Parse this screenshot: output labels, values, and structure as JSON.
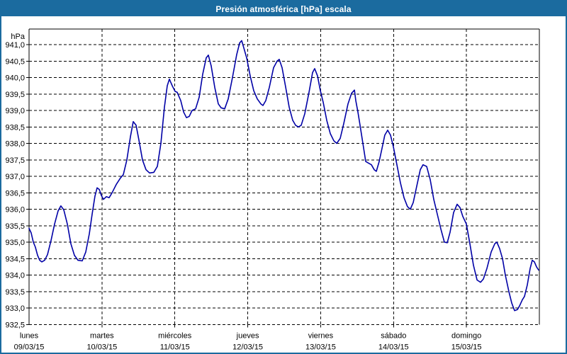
{
  "window": {
    "title": "Presión atmosférica [hPa] escala"
  },
  "colors": {
    "titlebar_bg": "#1b6b9f",
    "titlebar_text": "#ffffff",
    "window_border": "#1b6b9f",
    "plot_bg": "#ffffff",
    "grid": "#000000",
    "line": "#0000a6",
    "text": "#000000"
  },
  "y_axis": {
    "unit": "hPa",
    "ticks": [
      "941,0",
      "940,5",
      "940,0",
      "939,5",
      "939,0",
      "938,5",
      "938,0",
      "937,5",
      "937,0",
      "936,5",
      "936,0",
      "935,5",
      "935,0",
      "934,5",
      "934,0",
      "933,5",
      "933,0",
      "932,5"
    ],
    "max": 941.0,
    "min": 932.5,
    "step": 0.5
  },
  "x_axis": {
    "days": [
      {
        "name": "lunes",
        "date": "09/03/15"
      },
      {
        "name": "martes",
        "date": "10/03/15"
      },
      {
        "name": "miércoles",
        "date": "11/03/15"
      },
      {
        "name": "jueves",
        "date": "12/03/15"
      },
      {
        "name": "viernes",
        "date": "13/03/15"
      },
      {
        "name": "sábado",
        "date": "14/03/15"
      },
      {
        "name": "domingo",
        "date": "15/03/15"
      }
    ]
  },
  "chart_data": {
    "type": "line",
    "title": "Presión atmosférica [hPa] escala",
    "xlabel": "",
    "ylabel": "hPa",
    "ylim": [
      932.5,
      941.0
    ],
    "ytick_step": 0.5,
    "x_unit": "days since lunes 09/03/15 00:00, range 0–7",
    "x_categories": [
      "lunes 09/03/15",
      "martes 10/03/15",
      "miércoles 11/03/15",
      "jueves 12/03/15",
      "viernes 13/03/15",
      "sábado 14/03/15",
      "domingo 15/03/15"
    ],
    "grid": "dashed",
    "legend_position": "none",
    "line_color": "#0000a6",
    "series": [
      {
        "name": "Presión atmosférica [hPa]",
        "points": [
          [
            0.0,
            935.42
          ],
          [
            0.029,
            935.28
          ],
          [
            0.058,
            935.0
          ],
          [
            0.087,
            934.85
          ],
          [
            0.117,
            934.6
          ],
          [
            0.146,
            934.45
          ],
          [
            0.175,
            934.4
          ],
          [
            0.214,
            934.45
          ],
          [
            0.253,
            934.62
          ],
          [
            0.301,
            935.05
          ],
          [
            0.35,
            935.55
          ],
          [
            0.399,
            935.95
          ],
          [
            0.437,
            936.1
          ],
          [
            0.476,
            935.98
          ],
          [
            0.525,
            935.55
          ],
          [
            0.574,
            934.95
          ],
          [
            0.622,
            934.6
          ],
          [
            0.671,
            934.45
          ],
          [
            0.729,
            934.43
          ],
          [
            0.778,
            934.7
          ],
          [
            0.826,
            935.25
          ],
          [
            0.865,
            935.85
          ],
          [
            0.904,
            936.4
          ],
          [
            0.933,
            936.65
          ],
          [
            0.963,
            936.6
          ],
          [
            0.992,
            936.42
          ],
          [
            1.021,
            936.3
          ],
          [
            1.06,
            936.38
          ],
          [
            1.099,
            936.35
          ],
          [
            1.138,
            936.5
          ],
          [
            1.196,
            936.75
          ],
          [
            1.254,
            936.95
          ],
          [
            1.293,
            937.05
          ],
          [
            1.342,
            937.5
          ],
          [
            1.39,
            938.2
          ],
          [
            1.429,
            938.66
          ],
          [
            1.468,
            938.55
          ],
          [
            1.507,
            938.1
          ],
          [
            1.556,
            937.5
          ],
          [
            1.604,
            937.2
          ],
          [
            1.653,
            937.1
          ],
          [
            1.711,
            937.12
          ],
          [
            1.76,
            937.3
          ],
          [
            1.808,
            938.0
          ],
          [
            1.857,
            939.1
          ],
          [
            1.896,
            939.75
          ],
          [
            1.925,
            939.95
          ],
          [
            1.964,
            939.75
          ],
          [
            2.003,
            939.58
          ],
          [
            2.032,
            939.55
          ],
          [
            2.081,
            939.3
          ],
          [
            2.12,
            938.95
          ],
          [
            2.159,
            938.78
          ],
          [
            2.197,
            938.82
          ],
          [
            2.236,
            939.0
          ],
          [
            2.285,
            939.05
          ],
          [
            2.333,
            939.4
          ],
          [
            2.382,
            940.1
          ],
          [
            2.431,
            940.6
          ],
          [
            2.46,
            940.68
          ],
          [
            2.499,
            940.35
          ],
          [
            2.547,
            939.7
          ],
          [
            2.596,
            939.2
          ],
          [
            2.635,
            939.08
          ],
          [
            2.683,
            939.05
          ],
          [
            2.732,
            939.35
          ],
          [
            2.79,
            940.0
          ],
          [
            2.849,
            940.7
          ],
          [
            2.888,
            941.05
          ],
          [
            2.917,
            941.12
          ],
          [
            2.946,
            940.9
          ],
          [
            2.985,
            940.6
          ],
          [
            3.033,
            940.05
          ],
          [
            3.082,
            939.6
          ],
          [
            3.131,
            939.35
          ],
          [
            3.179,
            939.2
          ],
          [
            3.208,
            939.15
          ],
          [
            3.247,
            939.3
          ],
          [
            3.296,
            939.7
          ],
          [
            3.354,
            940.3
          ],
          [
            3.403,
            940.5
          ],
          [
            3.432,
            940.55
          ],
          [
            3.471,
            940.3
          ],
          [
            3.52,
            939.7
          ],
          [
            3.568,
            939.1
          ],
          [
            3.617,
            938.7
          ],
          [
            3.656,
            938.55
          ],
          [
            3.694,
            938.5
          ],
          [
            3.733,
            938.55
          ],
          [
            3.782,
            938.9
          ],
          [
            3.84,
            939.55
          ],
          [
            3.889,
            940.15
          ],
          [
            3.918,
            940.27
          ],
          [
            3.957,
            940.05
          ],
          [
            3.996,
            939.6
          ],
          [
            4.035,
            939.25
          ],
          [
            4.083,
            938.7
          ],
          [
            4.132,
            938.3
          ],
          [
            4.181,
            938.08
          ],
          [
            4.22,
            938.0
          ],
          [
            4.268,
            938.15
          ],
          [
            4.317,
            938.6
          ],
          [
            4.375,
            939.2
          ],
          [
            4.424,
            939.52
          ],
          [
            4.463,
            939.62
          ],
          [
            4.482,
            939.3
          ],
          [
            4.511,
            938.95
          ],
          [
            4.54,
            938.55
          ],
          [
            4.579,
            938.0
          ],
          [
            4.618,
            937.45
          ],
          [
            4.657,
            937.4
          ],
          [
            4.696,
            937.35
          ],
          [
            4.735,
            937.2
          ],
          [
            4.764,
            937.15
          ],
          [
            4.803,
            937.45
          ],
          [
            4.842,
            937.85
          ],
          [
            4.88,
            938.25
          ],
          [
            4.919,
            938.4
          ],
          [
            4.958,
            938.25
          ],
          [
            4.997,
            937.9
          ],
          [
            5.046,
            937.35
          ],
          [
            5.094,
            936.8
          ],
          [
            5.143,
            936.35
          ],
          [
            5.191,
            936.08
          ],
          [
            5.23,
            936.0
          ],
          [
            5.269,
            936.2
          ],
          [
            5.318,
            936.7
          ],
          [
            5.367,
            937.2
          ],
          [
            5.405,
            937.35
          ],
          [
            5.454,
            937.3
          ],
          [
            5.503,
            936.9
          ],
          [
            5.551,
            936.3
          ],
          [
            5.6,
            935.85
          ],
          [
            5.649,
            935.4
          ],
          [
            5.697,
            935.0
          ],
          [
            5.736,
            934.98
          ],
          [
            5.775,
            935.3
          ],
          [
            5.824,
            935.9
          ],
          [
            5.872,
            936.15
          ],
          [
            5.911,
            936.05
          ],
          [
            5.95,
            935.78
          ],
          [
            5.999,
            935.55
          ],
          [
            6.047,
            934.95
          ],
          [
            6.096,
            934.3
          ],
          [
            6.145,
            933.85
          ],
          [
            6.193,
            933.78
          ],
          [
            6.232,
            933.88
          ],
          [
            6.281,
            934.2
          ],
          [
            6.339,
            934.7
          ],
          [
            6.388,
            934.95
          ],
          [
            6.417,
            935.0
          ],
          [
            6.456,
            934.8
          ],
          [
            6.494,
            934.5
          ],
          [
            6.533,
            934.0
          ],
          [
            6.582,
            933.5
          ],
          [
            6.621,
            933.15
          ],
          [
            6.66,
            932.92
          ],
          [
            6.699,
            932.95
          ],
          [
            6.728,
            933.06
          ],
          [
            6.767,
            933.25
          ],
          [
            6.796,
            933.35
          ],
          [
            6.835,
            933.7
          ],
          [
            6.874,
            934.2
          ],
          [
            6.903,
            934.45
          ],
          [
            6.932,
            934.4
          ],
          [
            6.961,
            934.25
          ],
          [
            6.99,
            934.15
          ]
        ]
      }
    ]
  }
}
